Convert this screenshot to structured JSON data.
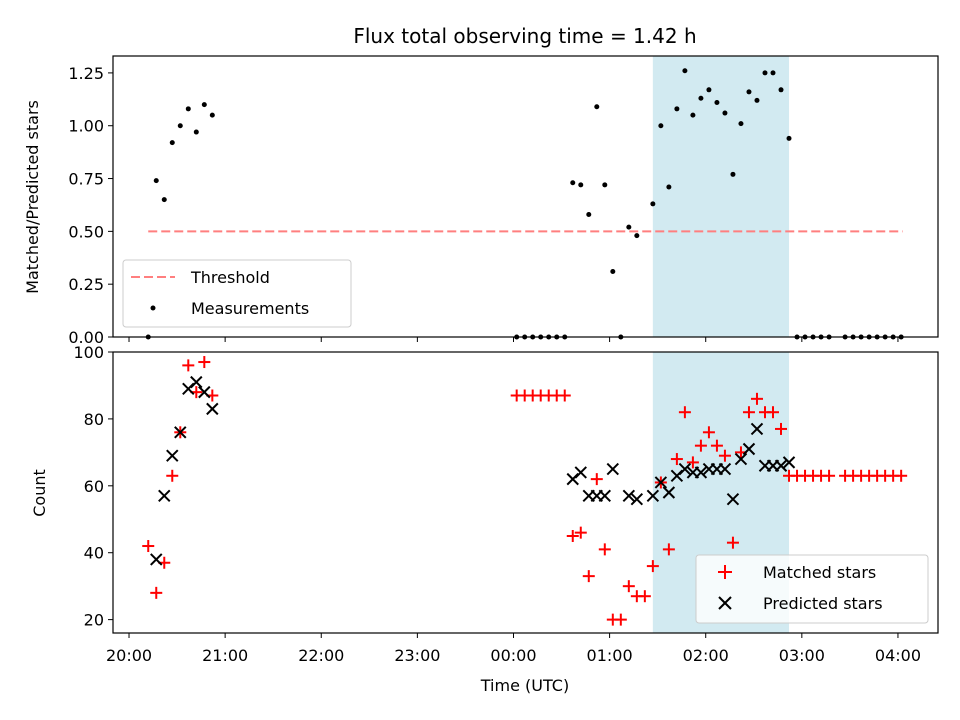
{
  "chart_data": [
    {
      "type": "scatter",
      "title": "Flux total observing time = 1.42 h",
      "xlabel": "",
      "ylabel": "Matched/Predicted stars",
      "xlim": [
        "19:50",
        "04:25"
      ],
      "ylim": [
        0,
        1.33
      ],
      "yticks": [
        "0.00",
        "0.25",
        "0.50",
        "0.75",
        "1.00",
        "1.25"
      ],
      "highlight_span": {
        "start": "01:27",
        "end": "02:52",
        "color": "#a6d6e3"
      },
      "threshold": {
        "name": "Threshold",
        "value": 0.5,
        "x_start": "20:12",
        "x_end": "04:03",
        "color": "#ff7f7f"
      },
      "legend_position": "lower left",
      "series": [
        {
          "name": "Measurements",
          "color": "#000000",
          "points": [
            [
              "20:12",
              0.0
            ],
            [
              "20:17",
              0.74
            ],
            [
              "20:22",
              0.65
            ],
            [
              "20:27",
              0.92
            ],
            [
              "20:32",
              1.0
            ],
            [
              "20:37",
              1.08
            ],
            [
              "20:42",
              0.97
            ],
            [
              "20:47",
              1.1
            ],
            [
              "20:52",
              1.05
            ],
            [
              "00:02",
              0.0
            ],
            [
              "00:07",
              0.0
            ],
            [
              "00:12",
              0.0
            ],
            [
              "00:17",
              0.0
            ],
            [
              "00:22",
              0.0
            ],
            [
              "00:27",
              0.0
            ],
            [
              "00:32",
              0.0
            ],
            [
              "00:37",
              0.73
            ],
            [
              "00:42",
              0.72
            ],
            [
              "00:47",
              0.58
            ],
            [
              "00:52",
              1.09
            ],
            [
              "00:57",
              0.72
            ],
            [
              "01:02",
              0.31
            ],
            [
              "01:07",
              0.0
            ],
            [
              "01:12",
              0.52
            ],
            [
              "01:17",
              0.48
            ],
            [
              "01:27",
              0.63
            ],
            [
              "01:32",
              1.0
            ],
            [
              "01:37",
              0.71
            ],
            [
              "01:42",
              1.08
            ],
            [
              "01:47",
              1.26
            ],
            [
              "01:52",
              1.05
            ],
            [
              "01:57",
              1.13
            ],
            [
              "02:02",
              1.17
            ],
            [
              "02:07",
              1.11
            ],
            [
              "02:12",
              1.06
            ],
            [
              "02:17",
              0.77
            ],
            [
              "02:22",
              1.01
            ],
            [
              "02:27",
              1.16
            ],
            [
              "02:32",
              1.12
            ],
            [
              "02:37",
              1.25
            ],
            [
              "02:42",
              1.25
            ],
            [
              "02:47",
              1.17
            ],
            [
              "02:52",
              0.94
            ],
            [
              "02:57",
              0.0
            ],
            [
              "03:02",
              0.0
            ],
            [
              "03:07",
              0.0
            ],
            [
              "03:12",
              0.0
            ],
            [
              "03:17",
              0.0
            ],
            [
              "03:27",
              0.0
            ],
            [
              "03:32",
              0.0
            ],
            [
              "03:37",
              0.0
            ],
            [
              "03:42",
              0.0
            ],
            [
              "03:47",
              0.0
            ],
            [
              "03:52",
              0.0
            ],
            [
              "03:57",
              0.0
            ],
            [
              "04:02",
              0.0
            ]
          ]
        }
      ]
    },
    {
      "type": "scatter",
      "title": "",
      "xlabel": "Time (UTC)",
      "ylabel": "Count",
      "xlim": [
        "19:50",
        "04:25"
      ],
      "ylim": [
        16,
        100
      ],
      "xticks": [
        "20:00",
        "21:00",
        "22:00",
        "23:00",
        "00:00",
        "01:00",
        "02:00",
        "03:00",
        "04:00"
      ],
      "yticks": [
        "20",
        "40",
        "60",
        "80",
        "100"
      ],
      "highlight_span": {
        "start": "01:27",
        "end": "02:52",
        "color": "#a6d6e3"
      },
      "legend_position": "lower right",
      "series": [
        {
          "name": "Matched stars",
          "marker": "plus",
          "color": "#ff0000",
          "points": [
            [
              "20:12",
              42
            ],
            [
              "20:17",
              28
            ],
            [
              "20:22",
              37
            ],
            [
              "20:27",
              63
            ],
            [
              "20:32",
              76
            ],
            [
              "20:37",
              96
            ],
            [
              "20:42",
              88
            ],
            [
              "20:47",
              97
            ],
            [
              "20:52",
              87
            ],
            [
              "00:02",
              87
            ],
            [
              "00:07",
              87
            ],
            [
              "00:12",
              87
            ],
            [
              "00:17",
              87
            ],
            [
              "00:22",
              87
            ],
            [
              "00:27",
              87
            ],
            [
              "00:32",
              87
            ],
            [
              "00:37",
              45
            ],
            [
              "00:42",
              46
            ],
            [
              "00:47",
              33
            ],
            [
              "00:52",
              62
            ],
            [
              "00:57",
              41
            ],
            [
              "01:02",
              20
            ],
            [
              "01:07",
              20
            ],
            [
              "01:12",
              30
            ],
            [
              "01:17",
              27
            ],
            [
              "01:22",
              27
            ],
            [
              "01:27",
              36
            ],
            [
              "01:32",
              61
            ],
            [
              "01:37",
              41
            ],
            [
              "01:42",
              68
            ],
            [
              "01:47",
              82
            ],
            [
              "01:52",
              67
            ],
            [
              "01:57",
              72
            ],
            [
              "02:02",
              76
            ],
            [
              "02:07",
              72
            ],
            [
              "02:12",
              69
            ],
            [
              "02:17",
              43
            ],
            [
              "02:22",
              70
            ],
            [
              "02:27",
              82
            ],
            [
              "02:32",
              86
            ],
            [
              "02:37",
              82
            ],
            [
              "02:42",
              82
            ],
            [
              "02:47",
              77
            ],
            [
              "02:52",
              63
            ],
            [
              "02:57",
              63
            ],
            [
              "03:02",
              63
            ],
            [
              "03:07",
              63
            ],
            [
              "03:12",
              63
            ],
            [
              "03:17",
              63
            ],
            [
              "03:27",
              63
            ],
            [
              "03:32",
              63
            ],
            [
              "03:37",
              63
            ],
            [
              "03:42",
              63
            ],
            [
              "03:47",
              63
            ],
            [
              "03:52",
              63
            ],
            [
              "03:57",
              63
            ],
            [
              "04:02",
              63
            ]
          ]
        },
        {
          "name": "Predicted stars",
          "marker": "x",
          "color": "#000000",
          "points": [
            [
              "20:17",
              38
            ],
            [
              "20:22",
              57
            ],
            [
              "20:27",
              69
            ],
            [
              "20:32",
              76
            ],
            [
              "20:37",
              89
            ],
            [
              "20:42",
              91
            ],
            [
              "20:47",
              88
            ],
            [
              "20:52",
              83
            ],
            [
              "00:37",
              62
            ],
            [
              "00:42",
              64
            ],
            [
              "00:47",
              57
            ],
            [
              "00:52",
              57
            ],
            [
              "00:57",
              57
            ],
            [
              "01:02",
              65
            ],
            [
              "01:12",
              57
            ],
            [
              "01:17",
              56
            ],
            [
              "01:27",
              57
            ],
            [
              "01:32",
              61
            ],
            [
              "01:37",
              58
            ],
            [
              "01:42",
              63
            ],
            [
              "01:47",
              65
            ],
            [
              "01:52",
              64
            ],
            [
              "01:57",
              64
            ],
            [
              "02:02",
              65
            ],
            [
              "02:07",
              65
            ],
            [
              "02:12",
              65
            ],
            [
              "02:17",
              56
            ],
            [
              "02:22",
              68
            ],
            [
              "02:27",
              71
            ],
            [
              "02:32",
              77
            ],
            [
              "02:37",
              66
            ],
            [
              "02:42",
              66
            ],
            [
              "02:47",
              66
            ],
            [
              "02:52",
              67
            ]
          ]
        }
      ]
    }
  ]
}
